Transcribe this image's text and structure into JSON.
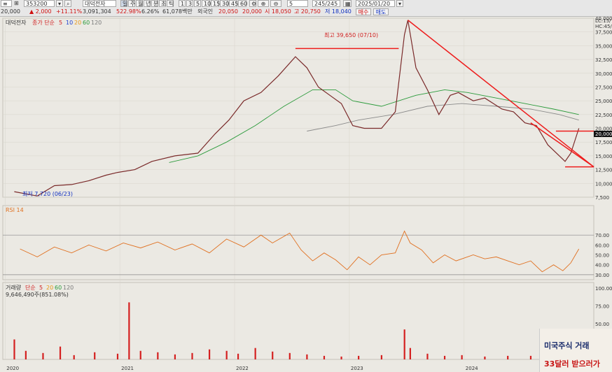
{
  "toolbar": {
    "code": "353200",
    "name": "대덕전자",
    "price": "20,000",
    "change": "▲ 2,000",
    "change_pct": "+11.11%",
    "volume": "3,091,304",
    "ratio": "522.98%",
    "rate2": "6.26%",
    "amount": "61,078백만",
    "prev_label": "외국인",
    "prev_value": "20,050",
    "cur_value": "20,000",
    "open": "시 18,050",
    "high": "고 20,750",
    "low": "저 18,040",
    "buy": "매수",
    "sell": "매도",
    "period_buttons": [
      "일",
      "주",
      "월",
      "년",
      "분",
      "초",
      "틱"
    ],
    "interval_buttons": [
      "1",
      "3",
      "5",
      "10",
      "15",
      "30",
      "45",
      "60"
    ],
    "count": "245/245",
    "date": "2025/01/20",
    "zoom_value": "5"
  },
  "price_panel": {
    "title": "대덕전자",
    "ma_label": "종가 단순",
    "ma_periods": [
      "5",
      "10",
      "20",
      "60",
      "120"
    ],
    "ma_colors": [
      "#d02020",
      "#2040d0",
      "#e89818",
      "#2a9a3a",
      "#7a7a7a"
    ],
    "high_annotation": "최고 39,650 (07/10)",
    "low_annotation": "최저 7,720 (06/23)",
    "current_price_tag": "20,000",
    "corner_labels": [
      "LC:15/",
      "HC:45/"
    ]
  },
  "rsi_panel": {
    "label": "RSI 14",
    "overbought": 70,
    "oversold": 30,
    "axis_labels": [
      "70.00",
      "60.00",
      "50.00",
      "40.00",
      "30.00"
    ]
  },
  "volume_panel": {
    "title": "거래량",
    "ma_label": "단순",
    "ma_periods": [
      "5",
      "20",
      "60",
      "120"
    ],
    "value_text": "9,646,490주(851.08%)",
    "axis_labels": [
      "100.00",
      "75.00",
      "50.00"
    ]
  },
  "x_axis_labels": [
    "2020",
    "2021",
    "2022",
    "2023",
    "2024"
  ],
  "watermark": {
    "line1": "미국주식 거래",
    "line2": "33달러 받으러가"
  },
  "chart_data": {
    "type": "line",
    "title": "대덕전자",
    "ylim": [
      7500,
      40000
    ],
    "y_ticks": [
      7500,
      10000,
      12500,
      15000,
      17500,
      20000,
      22500,
      25000,
      27500,
      30000,
      32500,
      35000,
      37500,
      40000
    ],
    "y_tick_labels": [
      "7,500",
      "10,000",
      "12,500",
      "15,000",
      "17,500",
      "20,000",
      "22,500",
      "25,000",
      "27,500",
      "30,000",
      "32,500",
      "35,000",
      "37,500",
      "40,000"
    ],
    "x_labels": [
      "2020",
      "2021",
      "2022",
      "2023",
      "2024"
    ],
    "series": [
      {
        "name": "종가",
        "values": [
          [
            2020.1,
            8500
          ],
          [
            2020.3,
            7720
          ],
          [
            2020.45,
            9600
          ],
          [
            2020.6,
            9800
          ],
          [
            2020.75,
            10500
          ],
          [
            2020.9,
            11500
          ],
          [
            2021.0,
            12000
          ],
          [
            2021.15,
            12500
          ],
          [
            2021.3,
            14000
          ],
          [
            2021.5,
            15000
          ],
          [
            2021.7,
            15500
          ],
          [
            2021.85,
            19000
          ],
          [
            2021.97,
            21500
          ],
          [
            2022.1,
            25000
          ],
          [
            2022.25,
            26500
          ],
          [
            2022.4,
            29500
          ],
          [
            2022.55,
            33000
          ],
          [
            2022.65,
            31000
          ],
          [
            2022.75,
            27500
          ],
          [
            2022.85,
            26000
          ],
          [
            2022.95,
            24500
          ],
          [
            2023.05,
            20500
          ],
          [
            2023.15,
            20000
          ],
          [
            2023.3,
            20000
          ],
          [
            2023.42,
            23000
          ],
          [
            2023.5,
            37000
          ],
          [
            2023.53,
            39650
          ],
          [
            2023.6,
            31000
          ],
          [
            2023.7,
            27000
          ],
          [
            2023.8,
            22500
          ],
          [
            2023.9,
            26000
          ],
          [
            2023.97,
            26500
          ],
          [
            2024.1,
            25000
          ],
          [
            2024.2,
            25500
          ],
          [
            2024.35,
            23500
          ],
          [
            2024.45,
            23000
          ],
          [
            2024.55,
            21000
          ],
          [
            2024.65,
            20500
          ],
          [
            2024.75,
            17000
          ],
          [
            2024.85,
            15000
          ],
          [
            2024.9,
            14000
          ],
          [
            2024.95,
            15500
          ],
          [
            2025.02,
            20000
          ]
        ]
      },
      {
        "name": "60",
        "values": [
          [
            2021.45,
            13800
          ],
          [
            2021.7,
            15000
          ],
          [
            2021.95,
            17500
          ],
          [
            2022.2,
            20500
          ],
          [
            2022.45,
            24000
          ],
          [
            2022.7,
            27000
          ],
          [
            2022.9,
            27000
          ],
          [
            2023.05,
            25000
          ],
          [
            2023.3,
            24000
          ],
          [
            2023.6,
            26000
          ],
          [
            2023.85,
            27000
          ],
          [
            2024.05,
            26500
          ],
          [
            2024.3,
            25500
          ],
          [
            2024.55,
            24500
          ],
          [
            2024.8,
            23500
          ],
          [
            2025.02,
            22500
          ]
        ]
      },
      {
        "name": "120",
        "values": [
          [
            2022.65,
            19500
          ],
          [
            2022.9,
            20500
          ],
          [
            2023.1,
            21500
          ],
          [
            2023.4,
            22500
          ],
          [
            2023.7,
            24000
          ],
          [
            2024.0,
            24500
          ],
          [
            2024.3,
            24000
          ],
          [
            2024.6,
            23500
          ],
          [
            2024.85,
            22500
          ],
          [
            2025.02,
            21500
          ]
        ]
      }
    ],
    "trendlines": [
      {
        "type": "horizontal",
        "y": 34500,
        "x": [
          2022.55,
          2023.45
        ]
      },
      {
        "type": "diagonal",
        "points": [
          [
            2023.53,
            39650
          ],
          [
            2025.15,
            13000
          ]
        ]
      },
      {
        "type": "horizontal",
        "y": 19500,
        "x": [
          2024.82,
          2025.15
        ]
      },
      {
        "type": "diagonal",
        "points": [
          [
            2024.6,
            21000
          ],
          [
            2025.15,
            13000
          ]
        ]
      },
      {
        "type": "horizontal",
        "y": 13000,
        "x": [
          2024.9,
          2025.15
        ]
      }
    ],
    "rsi": {
      "name": "RSI 14",
      "ylim": [
        30,
        70
      ],
      "values": [
        [
          2020.15,
          56
        ],
        [
          2020.3,
          48
        ],
        [
          2020.45,
          58
        ],
        [
          2020.6,
          52
        ],
        [
          2020.75,
          60
        ],
        [
          2020.9,
          54
        ],
        [
          2021.05,
          62
        ],
        [
          2021.2,
          57
        ],
        [
          2021.35,
          63
        ],
        [
          2021.5,
          55
        ],
        [
          2021.65,
          61
        ],
        [
          2021.8,
          52
        ],
        [
          2021.95,
          66
        ],
        [
          2022.1,
          58
        ],
        [
          2022.25,
          70
        ],
        [
          2022.35,
          62
        ],
        [
          2022.5,
          72
        ],
        [
          2022.6,
          55
        ],
        [
          2022.7,
          44
        ],
        [
          2022.8,
          52
        ],
        [
          2022.9,
          45
        ],
        [
          2023.0,
          35
        ],
        [
          2023.1,
          48
        ],
        [
          2023.2,
          40
        ],
        [
          2023.3,
          50
        ],
        [
          2023.42,
          52
        ],
        [
          2023.5,
          74
        ],
        [
          2023.55,
          62
        ],
        [
          2023.65,
          55
        ],
        [
          2023.75,
          42
        ],
        [
          2023.85,
          50
        ],
        [
          2023.95,
          44
        ],
        [
          2024.1,
          50
        ],
        [
          2024.2,
          46
        ],
        [
          2024.3,
          48
        ],
        [
          2024.4,
          44
        ],
        [
          2024.5,
          40
        ],
        [
          2024.6,
          44
        ],
        [
          2024.7,
          33
        ],
        [
          2024.8,
          40
        ],
        [
          2024.88,
          34
        ],
        [
          2024.95,
          42
        ],
        [
          2025.02,
          56
        ]
      ]
    },
    "volume": {
      "name": "거래량",
      "ylim": [
        0,
        100
      ],
      "values": [
        [
          2020.1,
          28
        ],
        [
          2020.2,
          12
        ],
        [
          2020.35,
          9
        ],
        [
          2020.5,
          18
        ],
        [
          2020.62,
          6
        ],
        [
          2020.8,
          10
        ],
        [
          2021.0,
          8
        ],
        [
          2021.1,
          80
        ],
        [
          2021.2,
          12
        ],
        [
          2021.35,
          10
        ],
        [
          2021.5,
          7
        ],
        [
          2021.65,
          9
        ],
        [
          2021.8,
          14
        ],
        [
          2021.95,
          12
        ],
        [
          2022.05,
          8
        ],
        [
          2022.2,
          16
        ],
        [
          2022.35,
          11
        ],
        [
          2022.5,
          9
        ],
        [
          2022.65,
          7
        ],
        [
          2022.8,
          5
        ],
        [
          2022.95,
          4
        ],
        [
          2023.1,
          5
        ],
        [
          2023.3,
          6
        ],
        [
          2023.5,
          42
        ],
        [
          2023.55,
          16
        ],
        [
          2023.7,
          8
        ],
        [
          2023.85,
          5
        ],
        [
          2024.0,
          6
        ],
        [
          2024.2,
          4
        ],
        [
          2024.4,
          5
        ],
        [
          2024.6,
          5
        ],
        [
          2024.8,
          6
        ],
        [
          2025.02,
          14
        ]
      ]
    }
  }
}
